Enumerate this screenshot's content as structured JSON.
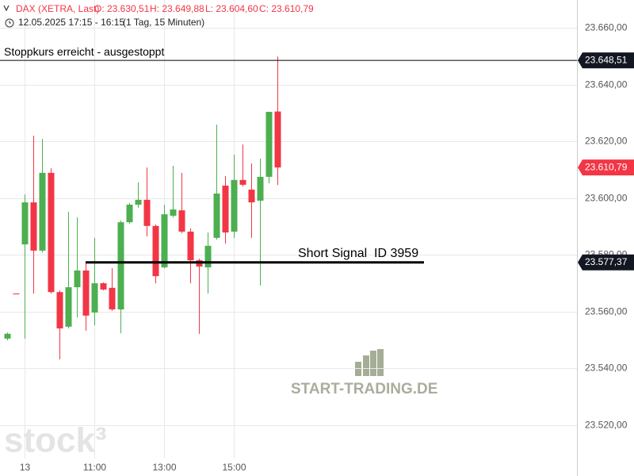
{
  "chart_data": {
    "type": "candlestick",
    "header": {
      "instrument": "DAX (XETRA, Last)",
      "open": "O: 23.630,51",
      "high": "H: 23.649,88",
      "low": "L: 23.604,60",
      "close": "C: 23.610,79",
      "period": "12.05.2025 17:15 - 16:15",
      "interval": "(1 Tag, 15 Minuten)"
    },
    "categories": [
      null,
      null,
      "13",
      null,
      null,
      null,
      null,
      null,
      null,
      null,
      "11:00",
      null,
      null,
      null,
      null,
      null,
      null,
      null,
      "13:00",
      null,
      null,
      null,
      null,
      null,
      null,
      null,
      "15:00",
      null,
      null,
      null,
      null,
      null
    ],
    "open": [
      23550.5,
      23566.4,
      23583.7,
      23598.5,
      23581.5,
      23608.9,
      23566.9,
      23554.7,
      23568.6,
      23574.5,
      23559.7,
      23570.0,
      23568.4,
      23560.8,
      23591.5,
      23597.7,
      23599.4,
      23590.2,
      23575.6,
      23593.8,
      23595.7,
      23588.2,
      23578.1,
      23575.6,
      23586.0,
      23604.4,
      23588.2,
      23606.4,
      23603.0,
      23599.1,
      23607.5,
      23630.51
    ],
    "high": [
      23552.7,
      23566.4,
      23601.3,
      23622.0,
      23620.9,
      23610.5,
      23567.5,
      23595.2,
      23593.2,
      23577.6,
      23586.0,
      23570.3,
      23575.3,
      23592.1,
      23598.3,
      23605.5,
      23610.8,
      23590.7,
      23597.7,
      23611.4,
      23608.9,
      23589.3,
      23578.7,
      23587.9,
      23625.9,
      23607.8,
      23615.3,
      23618.9,
      23612.2,
      23613.9,
      23630.4,
      23649.88
    ],
    "low": [
      23549.9,
      23566.1,
      23550.5,
      23566.4,
      23580.9,
      23566.4,
      23543.2,
      23554.1,
      23558.0,
      23553.3,
      23555.2,
      23567.5,
      23560.3,
      23552.4,
      23591.0,
      23596.6,
      23586.5,
      23570.0,
      23575.3,
      23593.2,
      23587.6,
      23570.0,
      23552.2,
      23566.4,
      23585.4,
      23584.0,
      23586.0,
      23604.1,
      23586.0,
      23569.2,
      23605.2,
      23604.6
    ],
    "close": [
      23552.2,
      23566.1,
      23598.5,
      23581.5,
      23608.9,
      23566.9,
      23554.1,
      23568.6,
      23574.5,
      23558.6,
      23570.0,
      23567.8,
      23560.8,
      23591.5,
      23597.7,
      23599.4,
      23590.2,
      23572.5,
      23594.3,
      23596.0,
      23588.2,
      23578.1,
      23575.9,
      23583.2,
      23601.6,
      23587.9,
      23606.4,
      23604.7,
      23598.5,
      23607.5,
      23630.4,
      23610.79
    ],
    "up_color": "#4caf50",
    "down_color": "#f23645",
    "ylim": [
      23502.1,
      23669.8
    ],
    "yticks": [
      {
        "value": 23520,
        "label": "23.520,00"
      },
      {
        "value": 23540,
        "label": "23.540,00"
      },
      {
        "value": 23560,
        "label": "23.560,00"
      },
      {
        "value": 23580,
        "label": "23.580,00"
      },
      {
        "value": 23600,
        "label": "23.600,00"
      },
      {
        "value": 23620,
        "label": "23.620,00"
      },
      {
        "value": 23640,
        "label": "23.640,00"
      },
      {
        "value": 23660,
        "label": "23.660,00"
      }
    ],
    "grid": true,
    "annotations": [
      {
        "text": "Stoppkurs erreicht - ausgestoppt",
        "value": 23648.51,
        "label": "23.648,51",
        "color": "#000000",
        "tag_color": "#131722"
      },
      {
        "text": "Short Signal  ID 3959",
        "value": 23577.37,
        "label": "23.577,37",
        "color": "#000000",
        "tag_color": "#131722"
      }
    ],
    "last_price": {
      "value": 23610.79,
      "label": "23.610,79",
      "tag_color": "#f23645"
    },
    "watermarks": [
      "stock³",
      "START-TRADING.DE"
    ]
  }
}
